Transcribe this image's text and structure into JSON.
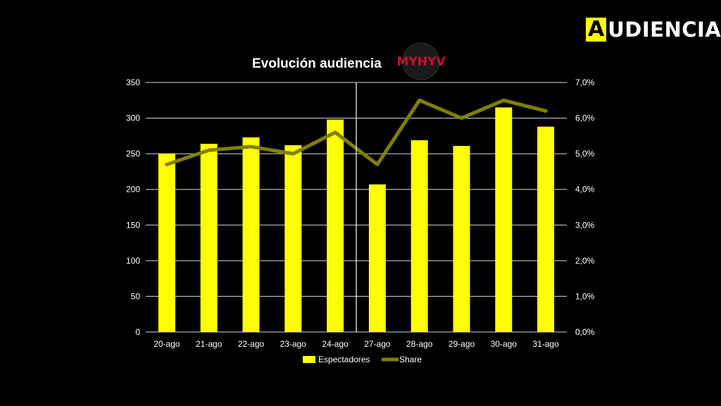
{
  "brand": {
    "first_letter": "A",
    "rest": "UDIENCIAS"
  },
  "logo": {
    "text": "MYHYV"
  },
  "colors": {
    "background": "#000000",
    "bar": "#ffff00",
    "line": "#808000",
    "grid": "#ffffff",
    "text": "#ffffff"
  },
  "chart_data": {
    "type": "bar",
    "title": "Evolución audiencia",
    "categories": [
      "20-ago",
      "21-ago",
      "22-ago",
      "23-ago",
      "24-ago",
      "27-ago",
      "28-ago",
      "29-ago",
      "30-ago",
      "31-ago"
    ],
    "series": [
      {
        "name": "Espectadores",
        "type": "bar",
        "axis": "left",
        "values": [
          250,
          264,
          273,
          262,
          298,
          207,
          269,
          261,
          315,
          288
        ]
      },
      {
        "name": "Share",
        "type": "line",
        "axis": "right",
        "values": [
          4.7,
          5.1,
          5.2,
          5.0,
          5.6,
          4.7,
          6.5,
          6.0,
          6.5,
          6.2
        ]
      }
    ],
    "y_left": {
      "min": 0,
      "max": 350,
      "step": 50,
      "ticks": [
        "0",
        "50",
        "100",
        "150",
        "200",
        "250",
        "300",
        "350"
      ]
    },
    "y_right": {
      "min": 0,
      "max": 7,
      "step": 1,
      "ticks": [
        "0,0%",
        "1,0%",
        "2,0%",
        "3,0%",
        "4,0%",
        "5,0%",
        "6,0%",
        "7,0%"
      ]
    },
    "divider_after_index": 4,
    "grid": true,
    "legend": "bottom"
  }
}
